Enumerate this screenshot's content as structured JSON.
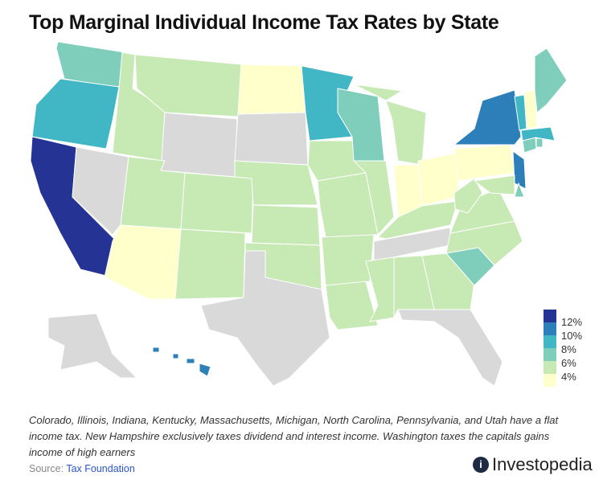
{
  "title": "Top Marginal Individual Income Tax Rates by State",
  "chart_data": {
    "type": "choropleth",
    "title": "Top Marginal Individual Income Tax Rates by State",
    "legend": {
      "placement": "bottom-right",
      "labels": [
        "12%",
        "10%",
        "8%",
        "6%",
        "4%"
      ]
    },
    "buckets": {
      "12": "#253494",
      "10": "#2c7fb8",
      "8": "#41b6c4",
      "6": "#7fcdbb",
      "4": "#c7e9b4",
      "low": "#ffffcc",
      "none": "#d9d9d9"
    },
    "states": {
      "WA": "6",
      "OR": "8",
      "CA": "12",
      "NV": "none",
      "ID": "4",
      "MT": "4",
      "WY": "none",
      "UT": "4",
      "AZ": "low",
      "CO": "4",
      "NM": "4",
      "ND": "low",
      "SD": "none",
      "NE": "4",
      "KS": "4",
      "OK": "4",
      "TX": "none",
      "MN": "8",
      "IA": "4",
      "MO": "4",
      "AR": "4",
      "LA": "4",
      "WI": "6",
      "IL": "4",
      "MI": "4",
      "IN": "low",
      "OH": "low",
      "KY": "4",
      "TN": "none",
      "MS": "4",
      "AL": "4",
      "GA": "4",
      "FL": "none",
      "SC": "6",
      "NC": "4",
      "VA": "4",
      "WV": "4",
      "PA": "low",
      "NY": "10",
      "NJ": "10",
      "MD": "4",
      "DE": "6",
      "CT": "6",
      "RI": "6",
      "MA": "8",
      "VT": "8",
      "NH": "low",
      "ME": "6",
      "AK": "none",
      "HI": "10"
    }
  },
  "note": "Colorado, Illinois, Indiana, Kentucky, Massachusetts, Michigan, North Carolina, Pennsylvania, and Utah have a flat income tax. New Hampshire exclusively taxes dividend and interest income. Washington taxes the capitals gains income of high earners",
  "source": {
    "label": "Source:",
    "link": "Tax Foundation"
  },
  "logo": "Investopedia"
}
